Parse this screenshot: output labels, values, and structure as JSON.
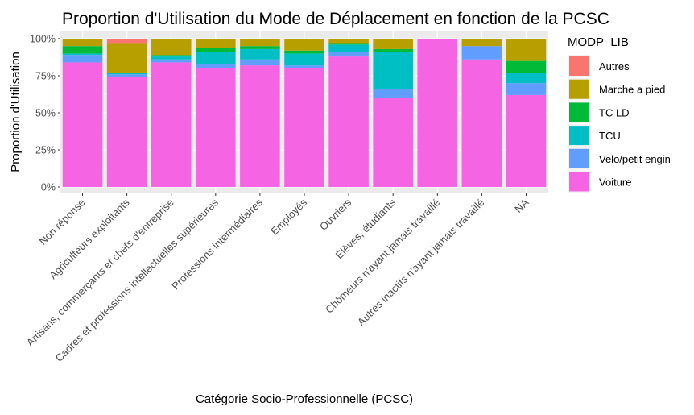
{
  "chart_data": {
    "type": "bar",
    "stacked": true,
    "title": "Proportion d'Utilisation du Mode de Déplacement en fonction de la PCSC",
    "xlabel": "Catégorie Socio-Professionnelle (PCSC)",
    "ylabel": "Proportion d'Utilisation",
    "ylim": [
      0,
      1
    ],
    "yticks": [
      0,
      0.25,
      0.5,
      0.75,
      1
    ],
    "ytick_labels": [
      "0%",
      "25%",
      "50%",
      "75%",
      "100%"
    ],
    "grid": true,
    "legend_title": "MODP_LIB",
    "legend_position": "right",
    "categories": [
      "Non réponse",
      "Agriculteurs exploitants",
      "Artisans, commerçants et chefs d'entreprise",
      "Cadres et professions intellectuelles supérieures",
      "Professions intermédiaires",
      "Employés",
      "Ouvriers",
      "Élèves, étudiants",
      "Chômeurs n'ayant jamais travaillé",
      "Autres inactifs n'ayant jamais travaillé",
      "NA"
    ],
    "series": [
      {
        "name": "Autres",
        "color": "#F8766D",
        "values": [
          0.0,
          0.03,
          0.0,
          0.0,
          0.0,
          0.0,
          0.0,
          0.0,
          0.0,
          0.0,
          0.0
        ]
      },
      {
        "name": "Marche a pied",
        "color": "#B79F00",
        "values": [
          0.05,
          0.2,
          0.11,
          0.06,
          0.05,
          0.08,
          0.03,
          0.07,
          0.0,
          0.05,
          0.15
        ]
      },
      {
        "name": "TC LD",
        "color": "#00BA38",
        "values": [
          0.05,
          0.0,
          0.01,
          0.03,
          0.02,
          0.02,
          0.01,
          0.02,
          0.0,
          0.0,
          0.08
        ]
      },
      {
        "name": "TCU",
        "color": "#00BFC4",
        "values": [
          0.01,
          0.01,
          0.02,
          0.08,
          0.07,
          0.08,
          0.05,
          0.25,
          0.0,
          0.0,
          0.07
        ]
      },
      {
        "name": "Velo/petit engin",
        "color": "#619CFF",
        "values": [
          0.05,
          0.02,
          0.02,
          0.03,
          0.04,
          0.02,
          0.03,
          0.06,
          0.0,
          0.09,
          0.08
        ]
      },
      {
        "name": "Voiture",
        "color": "#F564E3",
        "values": [
          0.84,
          0.74,
          0.84,
          0.8,
          0.82,
          0.8,
          0.88,
          0.6,
          1.0,
          0.86,
          0.62
        ]
      }
    ]
  }
}
